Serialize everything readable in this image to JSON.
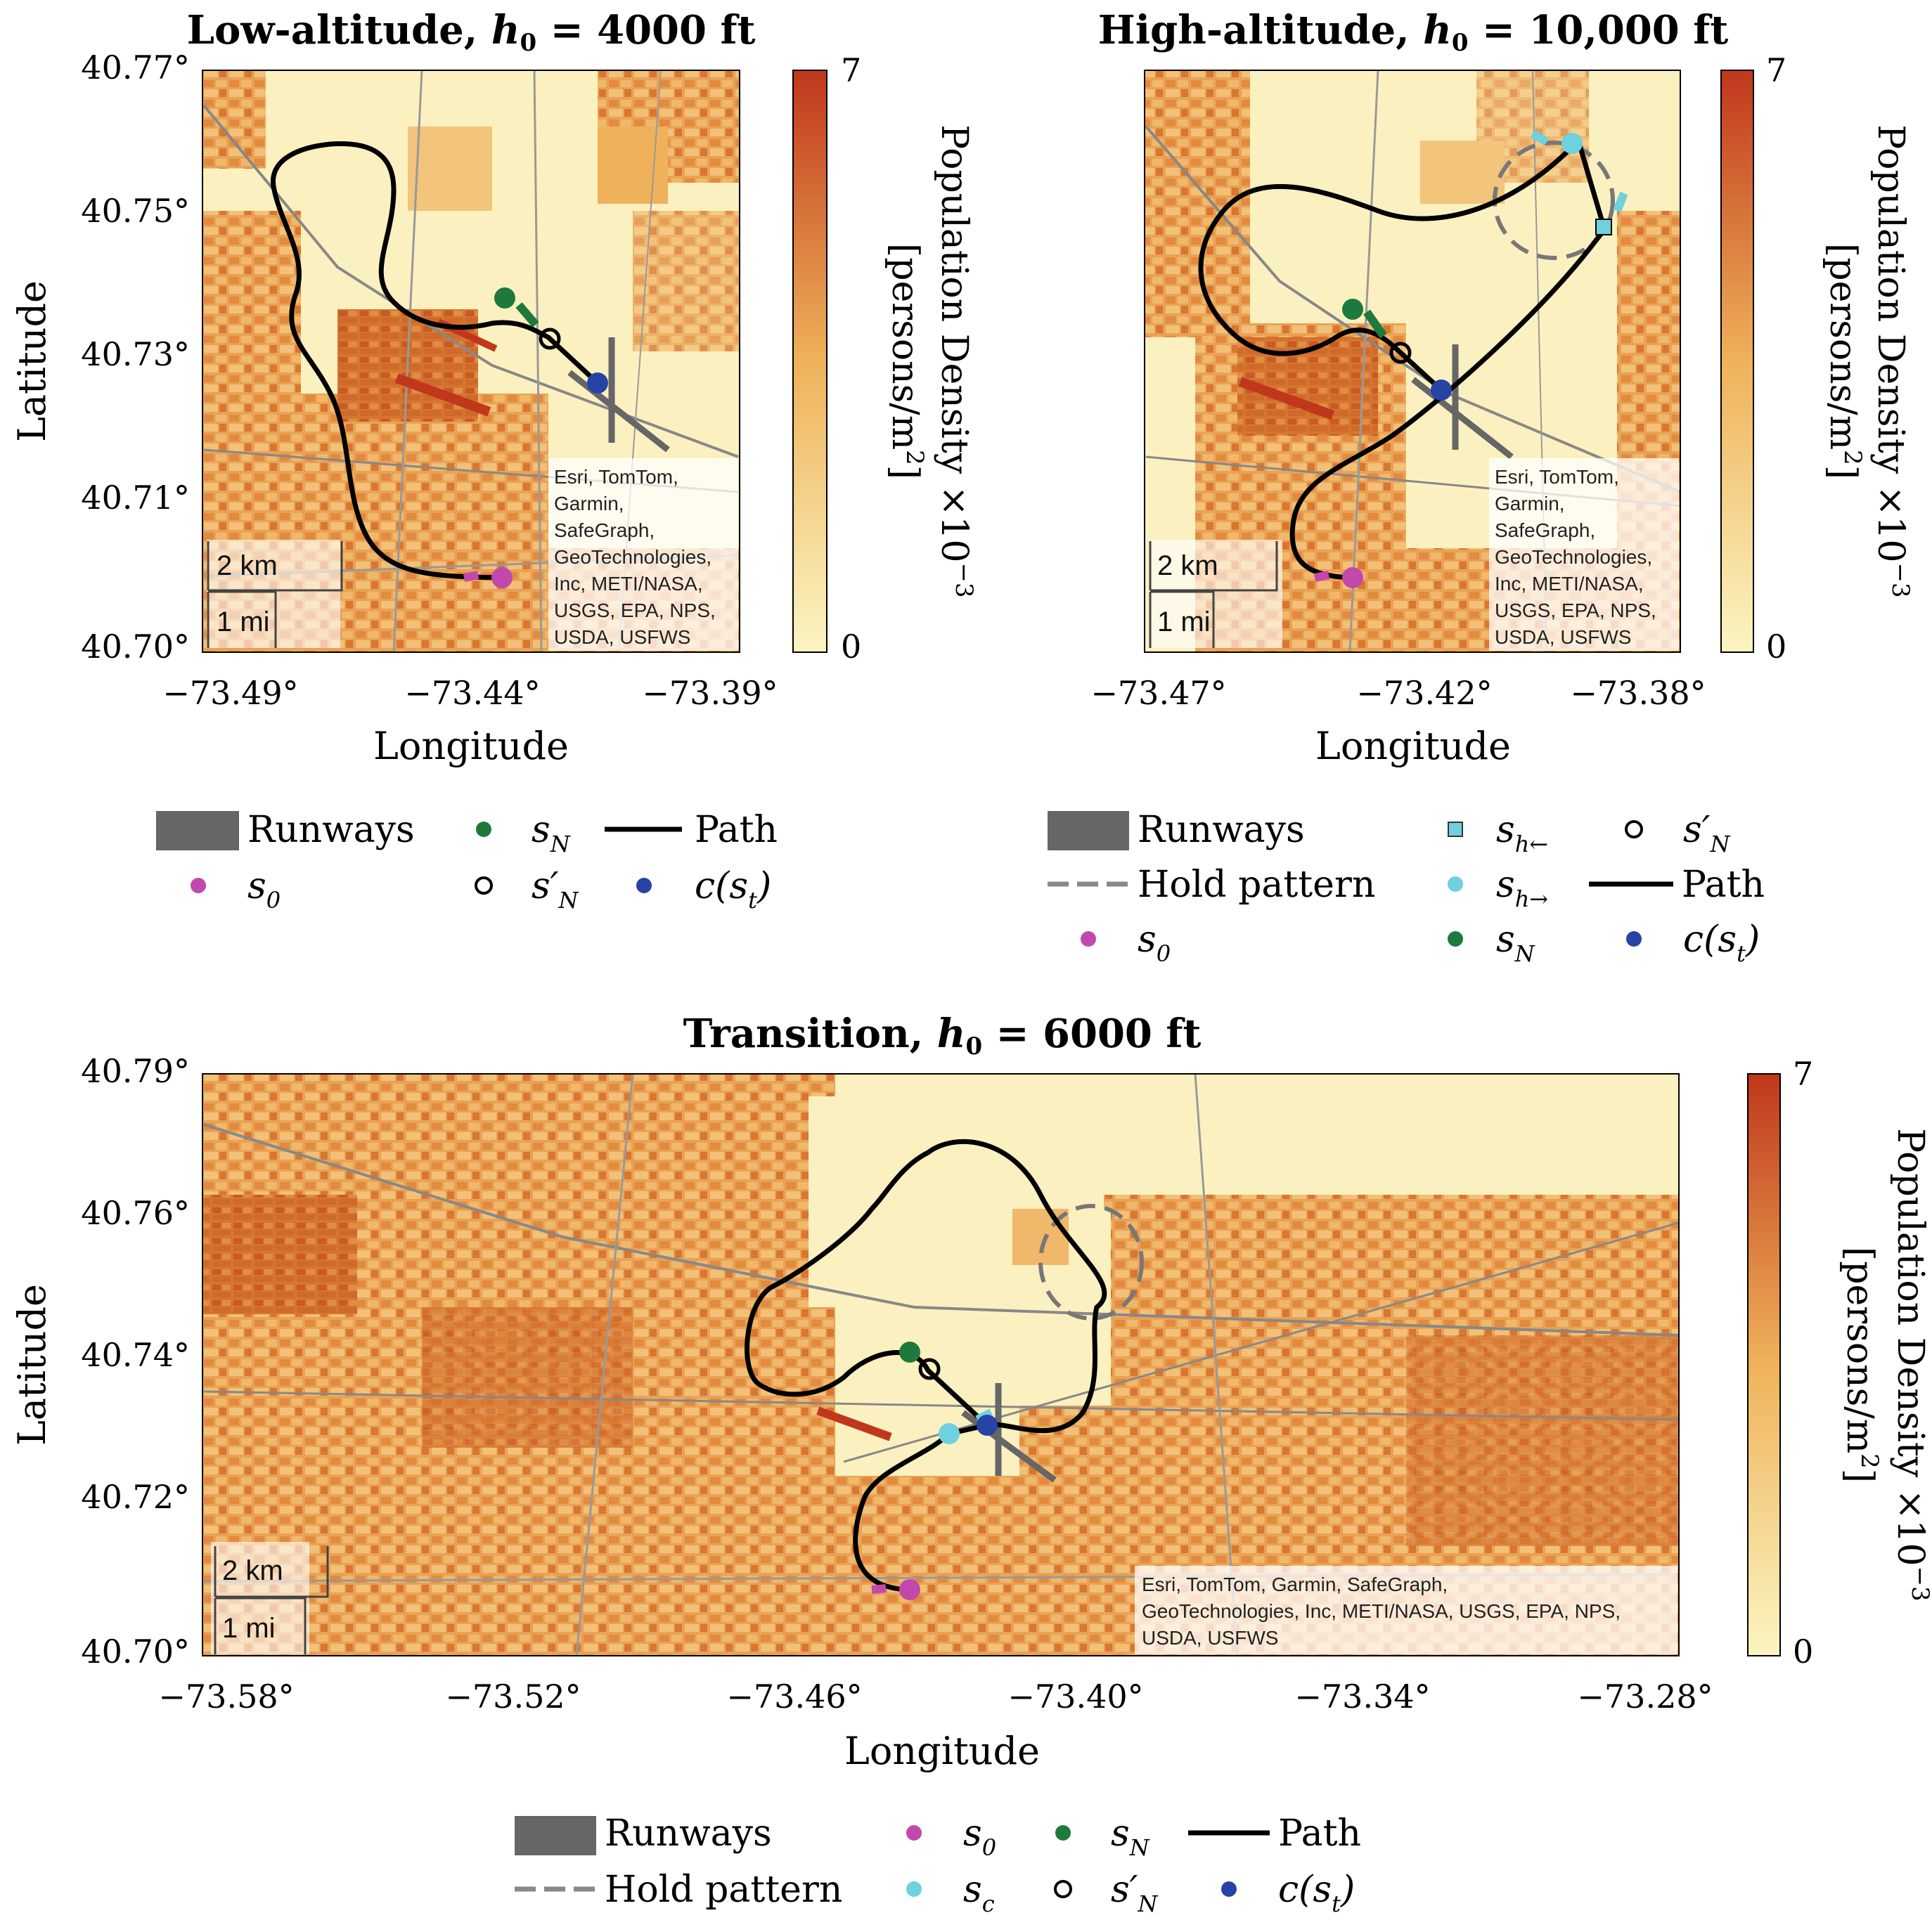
{
  "colors": {
    "cmap_low": "#fbf5c2",
    "cmap_mid": "#efb25a",
    "cmap_high": "#c0371c",
    "runway": "#666666",
    "path": "#000000",
    "hold": "#777777",
    "s0": "#c148ac",
    "sN": "#1e7a3c",
    "c_st": "#2743a6",
    "s_h": "#6fd0de",
    "s_c": "#6fd0de",
    "sN_prime": "#000000"
  },
  "panels": [
    {
      "id": "low",
      "title_text": "Low-altitude,",
      "title_sym": "h",
      "title_sub": "0",
      "title_rest": " = 4000 ft",
      "xlabel": "Longitude",
      "ylabel": "Latitude",
      "xticks": [
        "−73.49°",
        "−73.44°",
        "−73.39°"
      ],
      "yticks": [
        "40.77°",
        "40.75°",
        "40.73°",
        "40.71°",
        "40.70°"
      ],
      "colorbar": {
        "max_label": "7",
        "min_label": "0",
        "label_main": "Population Density ×10",
        "label_exp": "−3",
        "label_unit": "[persons/m",
        "label_unit_exp": "2",
        "label_unit_end": "]"
      },
      "attribution": [
        "Esri, TomTom,",
        "Garmin,",
        "SafeGraph,",
        "GeoTechnologies,",
        "Inc, METI/NASA,",
        "USGS, EPA, NPS,",
        "USDA, USFWS"
      ],
      "scale": {
        "km": "2 km",
        "mi": "1 mi"
      }
    },
    {
      "id": "high",
      "title_text": "High-altitude,",
      "title_sym": "h",
      "title_sub": "0",
      "title_rest": " = 10,000 ft",
      "xlabel": "Longitude",
      "ylabel": "",
      "xticks": [
        "−73.47°",
        "−73.42°",
        "−73.38°"
      ],
      "yticks": [],
      "colorbar": {
        "max_label": "7",
        "min_label": "0",
        "label_main": "Population Density ×10",
        "label_exp": "−3",
        "label_unit": "[persons/m",
        "label_unit_exp": "2",
        "label_unit_end": "]"
      },
      "attribution": [
        "Esri, TomTom,",
        "Garmin,",
        "SafeGraph,",
        "GeoTechnologies,",
        "Inc, METI/NASA,",
        "USGS, EPA, NPS,",
        "USDA, USFWS"
      ],
      "scale": {
        "km": "2 km",
        "mi": "1 mi"
      }
    },
    {
      "id": "transition",
      "title_text": "Transition,",
      "title_sym": "h",
      "title_sub": "0",
      "title_rest": " = 6000 ft",
      "xlabel": "Longitude",
      "ylabel": "Latitude",
      "xticks": [
        "−73.58°",
        "−73.52°",
        "−73.46°",
        "−73.40°",
        "−73.34°",
        "−73.28°"
      ],
      "yticks": [
        "40.79°",
        "40.76°",
        "40.74°",
        "40.72°",
        "40.70°"
      ],
      "colorbar": {
        "max_label": "7",
        "min_label": "0",
        "label_main": "Population Density ×10",
        "label_exp": "−3",
        "label_unit": "[persons/m",
        "label_unit_exp": "2",
        "label_unit_end": "]"
      },
      "attribution": [
        "Esri, TomTom, Garmin, SafeGraph,",
        "GeoTechnologies, Inc, METI/NASA, USGS, EPA, NPS,",
        "USDA, USFWS"
      ],
      "scale": {
        "km": "2 km",
        "mi": "1 mi"
      }
    }
  ],
  "legends": {
    "low": {
      "runways": "Runways",
      "path": "Path",
      "s0": "s",
      "s0_sub": "0",
      "sN": "s",
      "sN_sub": "N",
      "sNp": "s′",
      "sNp_sub": "N",
      "cst": "c(s",
      "cst_sub": "t",
      "cst_end": ")"
    },
    "high": {
      "runways": "Runways",
      "hold": "Hold pattern",
      "path": "Path",
      "s0": "s",
      "s0_sub": "0",
      "shl": "s",
      "shl_sub": "h←",
      "shr": "s",
      "shr_sub": "h→",
      "sN": "s",
      "sN_sub": "N",
      "sNp": "s′",
      "sNp_sub": "N",
      "cst": "c(s",
      "cst_sub": "t",
      "cst_end": ")"
    },
    "transition": {
      "runways": "Runways",
      "hold": "Hold pattern",
      "path": "Path",
      "s0": "s",
      "s0_sub": "0",
      "sc": "s",
      "sc_sub": "c",
      "sN": "s",
      "sN_sub": "N",
      "sNp": "s′",
      "sNp_sub": "N",
      "cst": "c(s",
      "cst_sub": "t",
      "cst_end": ")"
    }
  }
}
